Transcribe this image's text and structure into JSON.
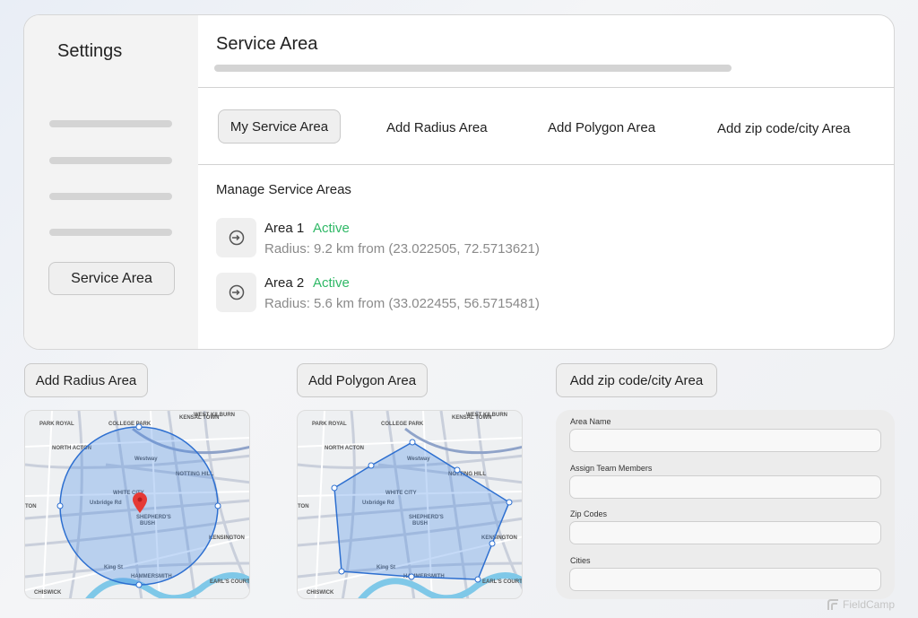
{
  "sidebar": {
    "title": "Settings",
    "active_item": "Service Area"
  },
  "header": {
    "title": "Service Area"
  },
  "tabs": [
    "My Service Area",
    "Add Radius Area",
    "Add Polygon Area",
    "Add zip code/city Area"
  ],
  "section_title": "Manage Service Areas",
  "areas": [
    {
      "name": "Area 1",
      "status": "Active",
      "detail": "Radius: 9.2 km from (23.022505, 72.5713621)"
    },
    {
      "name": "Area 2",
      "status": "Active",
      "detail": "Radius: 5.6 km from (33.022455, 56.5715481)"
    }
  ],
  "panels": [
    {
      "button": "Add Radius Area"
    },
    {
      "button": "Add Polygon Area"
    },
    {
      "button": "Add zip code/city Area"
    }
  ],
  "map_labels": [
    "PARK ROYAL",
    "COLLEGE PARK",
    "KENSAL TOWN",
    "WEST KILBURN",
    "NORTH ACTON",
    "NOTTING HILL",
    "WHITE CITY",
    "SHEPHERD'S",
    "BUSH",
    "TON",
    "KENSINGTON",
    "HAMMERSMITH",
    "CHISWICK",
    "EARL'S COURT",
    "Uxbridge Rd",
    "King St",
    "Westway"
  ],
  "form": {
    "fields": [
      "Area Name",
      "Assign Team Members",
      "Zip Codes",
      "Cities"
    ]
  },
  "watermark": "FieldCamp"
}
